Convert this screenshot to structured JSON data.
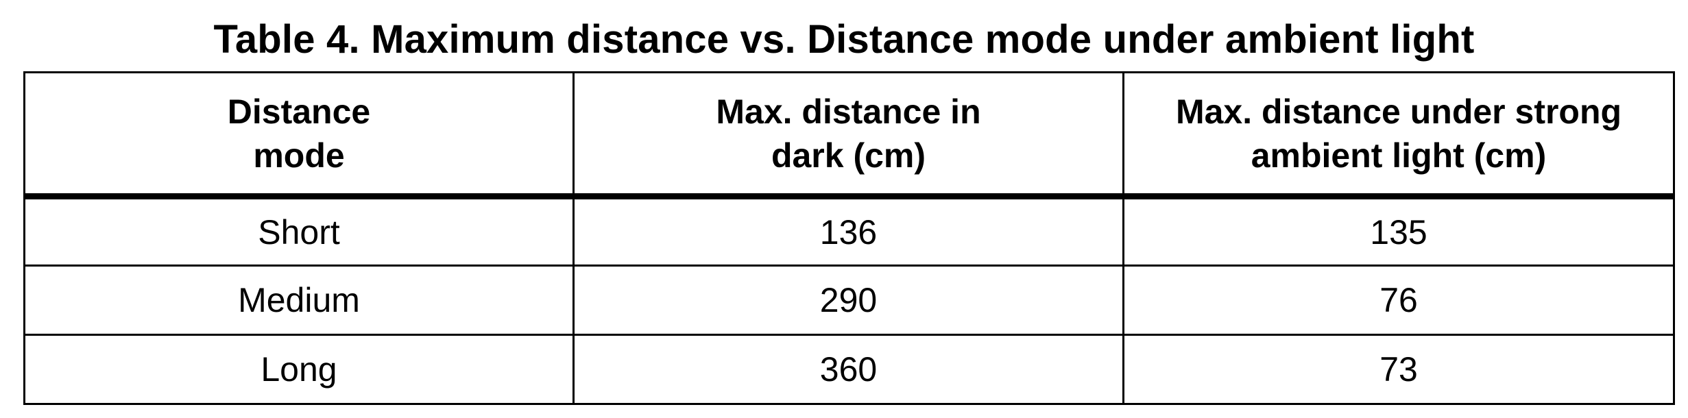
{
  "caption": "Table 4. Maximum distance vs. Distance mode under ambient light",
  "table": {
    "headers": [
      {
        "line1": "Distance",
        "line2": "mode"
      },
      {
        "line1": "Max. distance in",
        "line2": "dark (cm)"
      },
      {
        "line1": "Max. distance under strong",
        "line2": "ambient light (cm)"
      }
    ],
    "rows": [
      {
        "mode": "Short",
        "dark": "136",
        "ambient": "135"
      },
      {
        "mode": "Medium",
        "dark": "290",
        "ambient": "76"
      },
      {
        "mode": "Long",
        "dark": "360",
        "ambient": "73"
      }
    ]
  }
}
